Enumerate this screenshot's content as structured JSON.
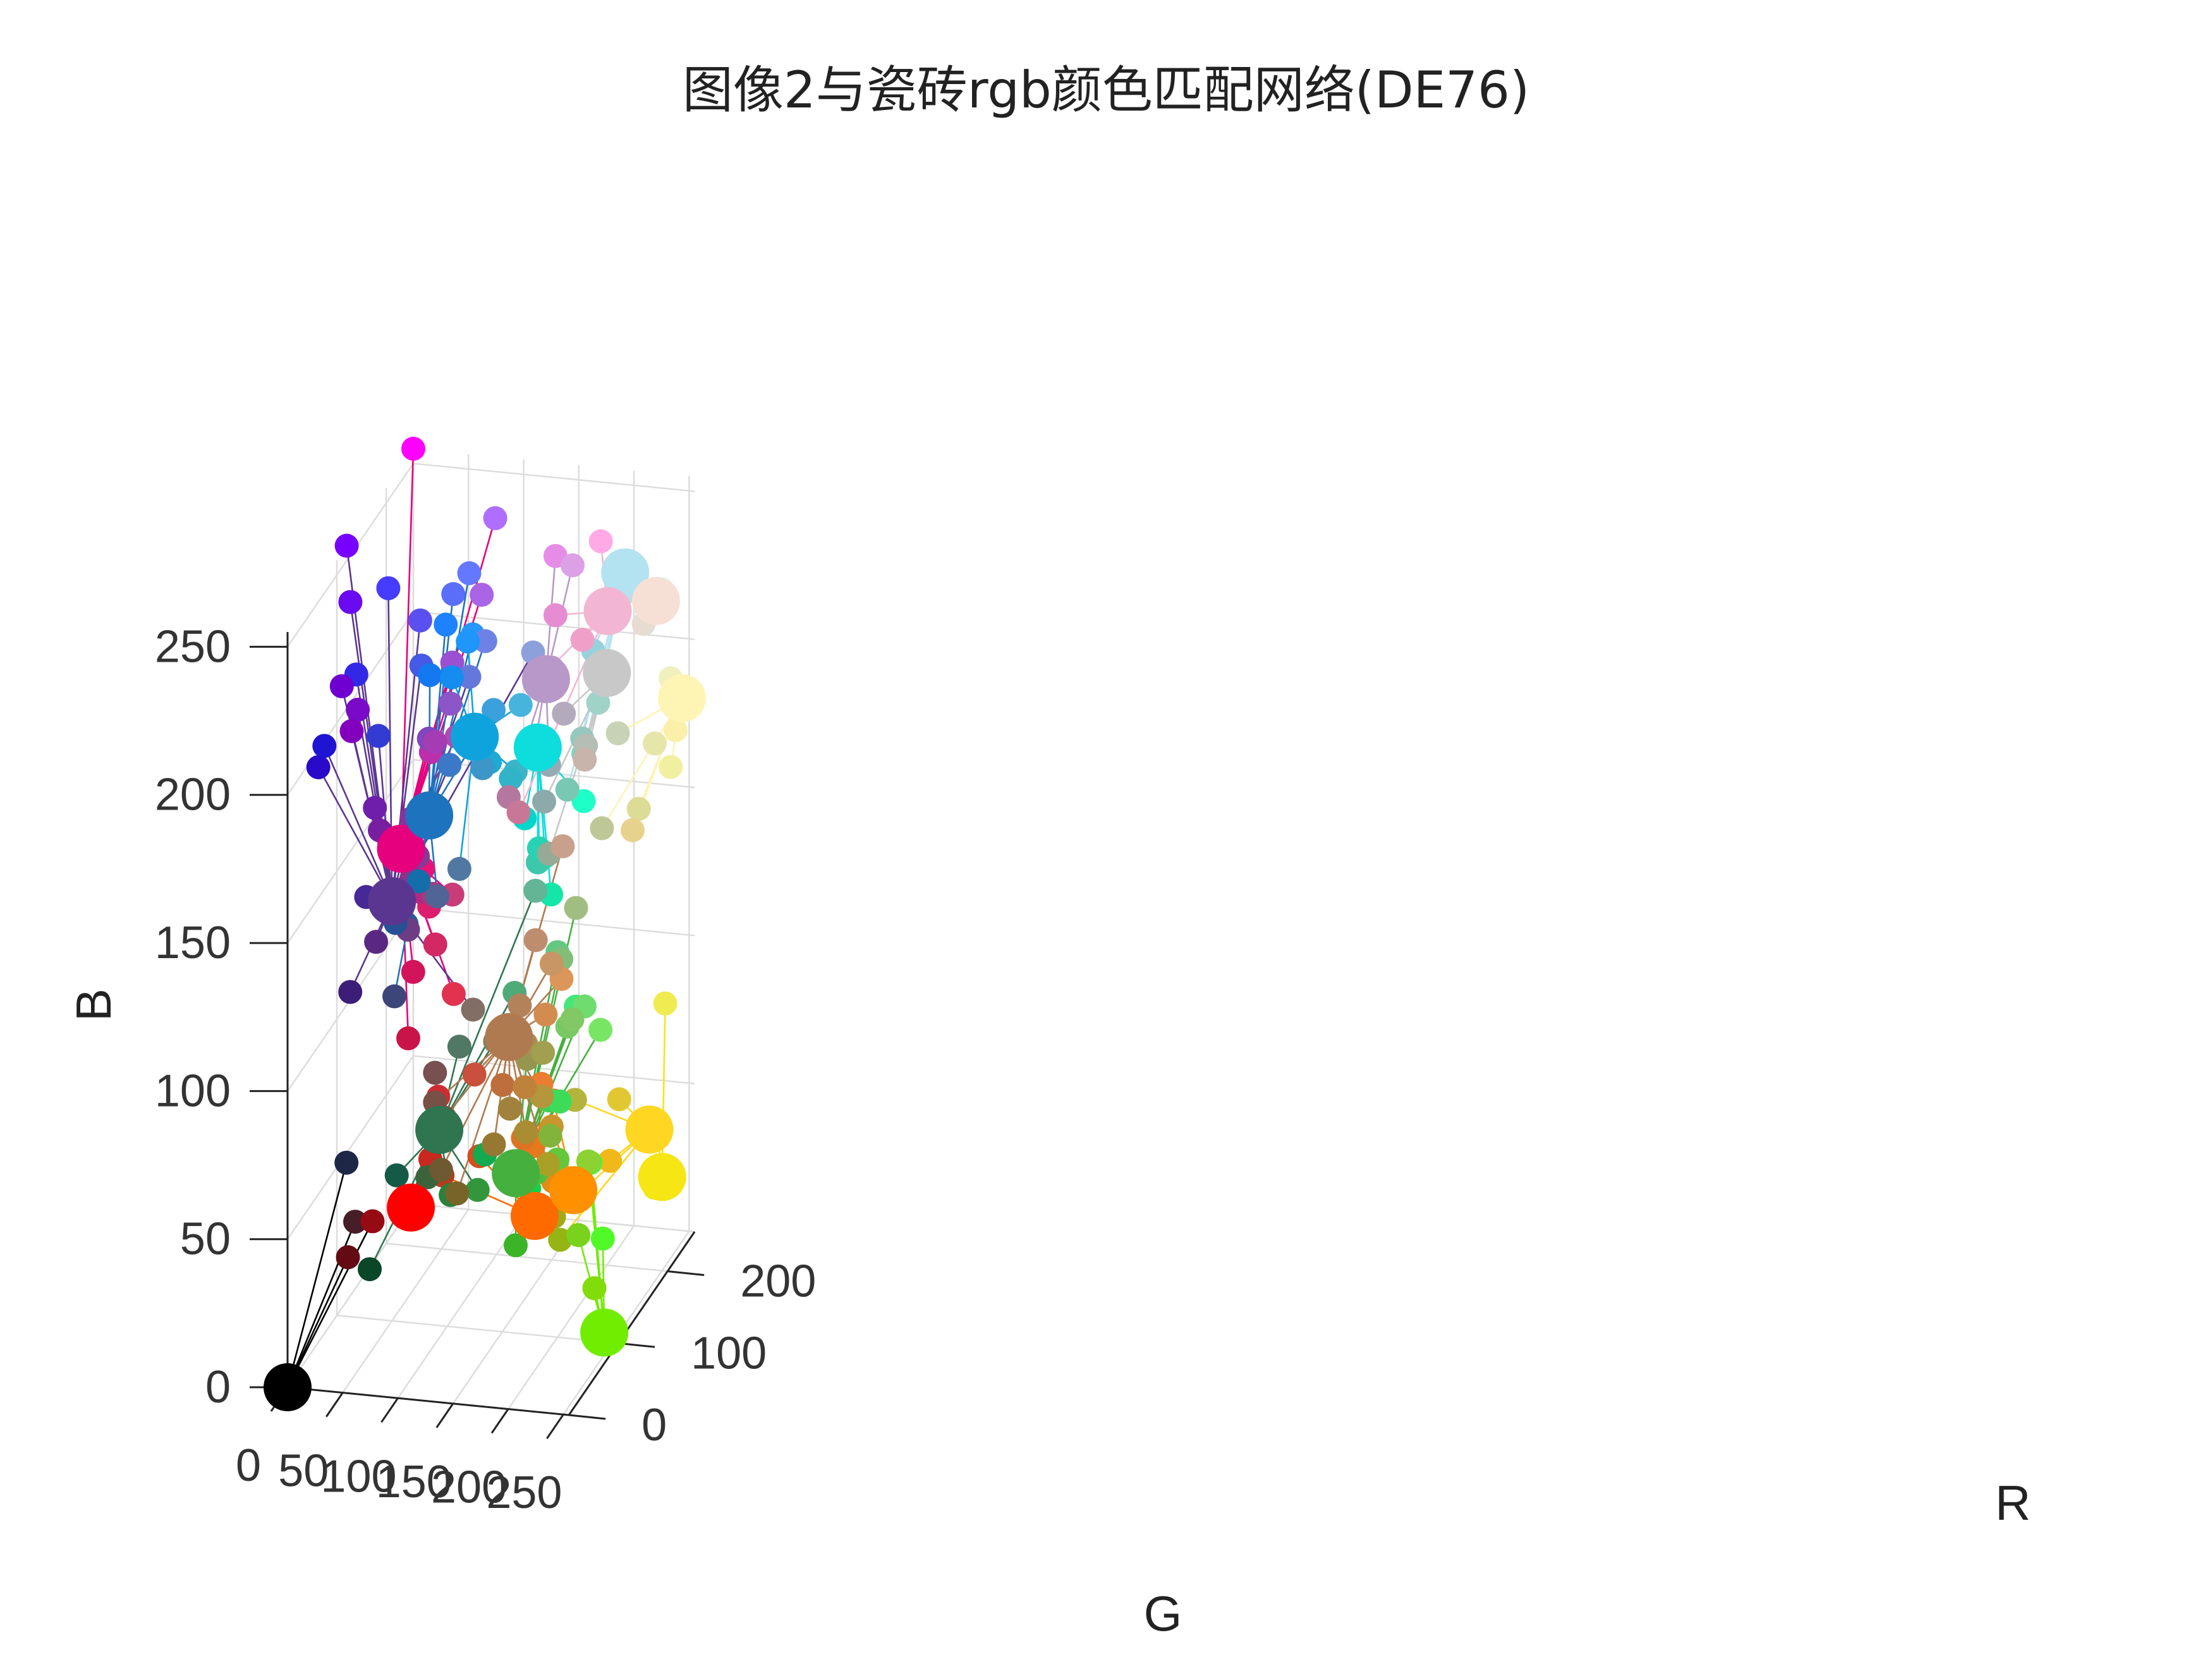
{
  "chart_data": {
    "type": "scatter",
    "title": "图像2与瓷砖rgb颜色匹配网络(DE76)",
    "xlabel": "G",
    "ylabel": "R",
    "zlabel": "B",
    "xlim": [
      0,
      255
    ],
    "ylim": [
      0,
      255
    ],
    "zlim": [
      0,
      255
    ],
    "x_ticks": [
      "0",
      "50",
      "100",
      "150",
      "200",
      "250"
    ],
    "y_ticks": [
      "0",
      "100",
      "200"
    ],
    "z_ticks": [
      "0",
      "50",
      "100",
      "150",
      "200",
      "250"
    ],
    "grid": true,
    "clusters": [
      {
        "center": "#FF0000",
        "rgb": [
          250,
          0,
          0
        ],
        "members": [
          [
            200,
            40,
            30
          ],
          [
            190,
            55,
            40
          ],
          [
            205,
            45,
            50
          ]
        ]
      },
      {
        "center": "#FF6A00",
        "rgb": [
          255,
          110,
          0
        ],
        "members": [
          [
            210,
            80,
            30
          ],
          [
            230,
            120,
            30
          ],
          [
            220,
            115,
            35
          ],
          [
            235,
            125,
            50
          ],
          [
            180,
            60,
            30
          ]
        ]
      },
      {
        "center": "#FF9000",
        "rgb": [
          255,
          145,
          10
        ],
        "members": [
          [
            225,
            140,
            20
          ],
          [
            215,
            145,
            50
          ],
          [
            200,
            150,
            45
          ]
        ]
      },
      {
        "center": "#FFD621",
        "rgb": [
          255,
          214,
          33
        ],
        "members": [
          [
            240,
            185,
            25
          ],
          [
            180,
            180,
            60
          ],
          [
            160,
            170,
            25
          ],
          [
            225,
            200,
            50
          ],
          [
            150,
            180,
            20
          ]
        ]
      },
      {
        "center": "#F5E614",
        "rgb": [
          245,
          230,
          20
        ],
        "members": [
          [
            240,
            235,
            80
          ],
          [
            235,
            230,
            40
          ],
          [
            230,
            230,
            20
          ]
        ]
      },
      {
        "center": "#70ED00",
        "rgb": [
          112,
          237,
          0
        ],
        "members": [
          [
            130,
            220,
            10
          ],
          [
            80,
            250,
            40
          ],
          [
            100,
            230,
            60
          ],
          [
            140,
            210,
            50
          ],
          [
            120,
            210,
            30
          ]
        ]
      },
      {
        "center": "#E6007E",
        "rgb": [
          230,
          0,
          126
        ],
        "members": [
          [
            255,
            0,
            255
          ],
          [
            230,
            20,
            120
          ],
          [
            210,
            20,
            90
          ],
          [
            200,
            20,
            70
          ],
          [
            210,
            40,
            100
          ],
          [
            225,
            50,
            80
          ],
          [
            220,
            30,
            110
          ],
          [
            200,
            60,
            120
          ],
          [
            180,
            40,
            125
          ],
          [
            160,
            60,
            130
          ],
          [
            140,
            50,
            140
          ],
          [
            150,
            40,
            150
          ],
          [
            190,
            45,
            170
          ],
          [
            175,
            75,
            180
          ],
          [
            130,
            70,
            190
          ],
          [
            140,
            85,
            200
          ],
          [
            165,
            60,
            180
          ],
          [
            155,
            80,
            210
          ],
          [
            170,
            100,
            230
          ],
          [
            175,
            110,
            255
          ]
        ]
      },
      {
        "center": "#5B3690",
        "rgb": [
          91,
          54,
          144
        ],
        "members": [
          [
            120,
            0,
            255
          ],
          [
            105,
            10,
            240
          ],
          [
            40,
            10,
            200
          ],
          [
            50,
            40,
            230
          ],
          [
            30,
            20,
            210
          ],
          [
            70,
            60,
            255
          ],
          [
            90,
            80,
            240
          ],
          [
            70,
            90,
            230
          ],
          [
            50,
            60,
            210
          ],
          [
            100,
            120,
            220
          ],
          [
            140,
            160,
            220
          ],
          [
            110,
            0,
            210
          ],
          [
            120,
            10,
            200
          ],
          [
            130,
            0,
            190
          ],
          [
            110,
            30,
            170
          ],
          [
            120,
            30,
            160
          ],
          [
            130,
            110,
            100
          ],
          [
            60,
            30,
            120
          ],
          [
            70,
            40,
            150
          ],
          [
            40,
            90,
            150
          ],
          [
            60,
            120,
            200
          ],
          [
            140,
            50,
            160
          ],
          [
            130,
            60,
            150
          ],
          [
            110,
            60,
            130
          ],
          [
            90,
            40,
            130
          ],
          [
            100,
            50,
            140
          ]
        ]
      },
      {
        "center": "#000000",
        "rgb": [
          0,
          0,
          0
        ],
        "members": [
          [
            70,
            30,
            40
          ],
          [
            100,
            10,
            20
          ],
          [
            150,
            10,
            20
          ],
          [
            30,
            40,
            70
          ]
        ]
      },
      {
        "center": "#1E73BE",
        "rgb": [
          30,
          115,
          190
        ],
        "members": [
          [
            20,
            120,
            240
          ],
          [
            30,
            130,
            255
          ],
          [
            40,
            150,
            250
          ],
          [
            20,
            110,
            170
          ],
          [
            60,
            160,
            220
          ],
          [
            90,
            110,
            250
          ],
          [
            100,
            120,
            255
          ],
          [
            110,
            130,
            230
          ],
          [
            60,
            70,
            120
          ],
          [
            80,
            100,
            150
          ],
          [
            40,
            80,
            150
          ]
        ]
      },
      {
        "center": "#0FA3DE",
        "rgb": [
          15,
          163,
          222
        ],
        "members": [
          [
            20,
            140,
            240
          ],
          [
            30,
            150,
            250
          ],
          [
            20,
            160,
            220
          ],
          [
            60,
            180,
            200
          ],
          [
            70,
            180,
            220
          ],
          [
            30,
            170,
            210
          ],
          [
            60,
            150,
            200
          ],
          [
            80,
            120,
            160
          ]
        ]
      },
      {
        "center": "#0DDDDD",
        "rgb": [
          13,
          221,
          221
        ],
        "members": [
          [
            30,
            255,
            200
          ],
          [
            0,
            215,
            200
          ],
          [
            30,
            220,
            180
          ],
          [
            60,
            200,
            170
          ],
          [
            40,
            210,
            180
          ],
          [
            20,
            230,
            170
          ],
          [
            50,
            180,
            200
          ]
        ]
      },
      {
        "center": "#B3E2F0",
        "rgb": [
          179,
          226,
          240
        ],
        "members": [
          [
            130,
            210,
            190
          ],
          [
            150,
            200,
            190
          ],
          [
            190,
            220,
            230
          ],
          [
            200,
            250,
            230
          ],
          [
            160,
            210,
            200
          ],
          [
            120,
            200,
            180
          ],
          [
            150,
            210,
            220
          ]
        ]
      },
      {
        "center": "#B898C8",
        "rgb": [
          184,
          152,
          200
        ],
        "members": [
          [
            230,
            140,
            230
          ],
          [
            200,
            150,
            200
          ],
          [
            220,
            160,
            230
          ],
          [
            150,
            170,
            180
          ],
          [
            180,
            120,
            160
          ],
          [
            210,
            130,
            170
          ]
        ]
      },
      {
        "center": "#2E7550",
        "rgb": [
          46,
          117,
          80
        ],
        "members": [
          [
            10,
            70,
            40
          ],
          [
            20,
            90,
            70
          ],
          [
            40,
            130,
            60
          ],
          [
            50,
            150,
            60
          ],
          [
            80,
            120,
            100
          ],
          [
            80,
            170,
            120
          ],
          [
            100,
            180,
            150
          ],
          [
            130,
            130,
            90
          ],
          [
            60,
            100,
            60
          ],
          [
            120,
            80,
            80
          ]
        ]
      },
      {
        "center": "#F2B6D2",
        "rgb": [
          242,
          182,
          210
        ],
        "members": [
          [
            240,
            160,
            200
          ],
          [
            255,
            170,
            230
          ],
          [
            230,
            130,
            190
          ],
          [
            220,
            200,
            220
          ],
          [
            230,
            140,
            210
          ],
          [
            200,
            120,
            150
          ]
        ]
      },
      {
        "center": "#C8C8C8",
        "rgb": [
          200,
          200,
          200
        ],
        "members": [
          [
            180,
            190,
            180
          ],
          [
            180,
            170,
            190
          ],
          [
            200,
            180,
            170
          ],
          [
            150,
            170,
            150
          ],
          [
            140,
            170,
            170
          ]
        ]
      },
      {
        "center": "#F6E0D6",
        "rgb": [
          246,
          224,
          214
        ],
        "members": [
          [
            230,
            220,
            210
          ]
        ]
      },
      {
        "center": "#45B03E",
        "rgb": [
          69,
          176,
          62
        ],
        "members": [
          [
            20,
            210,
            70
          ],
          [
            60,
            210,
            90
          ],
          [
            100,
            200,
            130
          ],
          [
            130,
            190,
            120
          ],
          [
            120,
            200,
            100
          ],
          [
            100,
            200,
            60
          ],
          [
            80,
            190,
            60
          ],
          [
            60,
            180,
            40
          ],
          [
            100,
            180,
            40
          ],
          [
            20,
            170,
            80
          ],
          [
            80,
            170,
            60
          ],
          [
            130,
            180,
            60
          ],
          [
            60,
            220,
            90
          ],
          [
            70,
            230,
            120
          ],
          [
            120,
            230,
            100
          ],
          [
            110,
            220,
            110
          ],
          [
            120,
            150,
            50
          ],
          [
            150,
            150,
            80
          ],
          [
            160,
            190,
            130
          ],
          [
            130,
            200,
            100
          ]
        ]
      },
      {
        "center": "#FEF4B4",
        "rgb": [
          254,
          244,
          180
        ],
        "members": [
          [
            230,
            230,
            170
          ],
          [
            220,
            220,
            150
          ],
          [
            240,
            240,
            160
          ],
          [
            200,
            210,
            180
          ],
          [
            230,
            210,
            140
          ],
          [
            190,
            200,
            150
          ],
          [
            250,
            240,
            170
          ],
          [
            240,
            240,
            190
          ]
        ]
      },
      {
        "center": "#B07A50",
        "rgb": [
          176,
          122,
          80
        ],
        "members": [
          [
            200,
            80,
            60
          ],
          [
            120,
            100,
            40
          ],
          [
            110,
            90,
            50
          ],
          [
            180,
            130,
            90
          ],
          [
            190,
            110,
            60
          ],
          [
            220,
            150,
            90
          ],
          [
            160,
            130,
            60
          ],
          [
            170,
            140,
            80
          ],
          [
            200,
            150,
            100
          ],
          [
            190,
            140,
            110
          ],
          [
            180,
            150,
            60
          ],
          [
            170,
            160,
            40
          ],
          [
            150,
            120,
            50
          ],
          [
            170,
            140,
            50
          ],
          [
            190,
            130,
            60
          ],
          [
            160,
            160,
            80
          ],
          [
            140,
            80,
            60
          ],
          [
            210,
            140,
            80
          ],
          [
            120,
            80,
            70
          ],
          [
            200,
            160,
            140
          ]
        ]
      }
    ]
  }
}
